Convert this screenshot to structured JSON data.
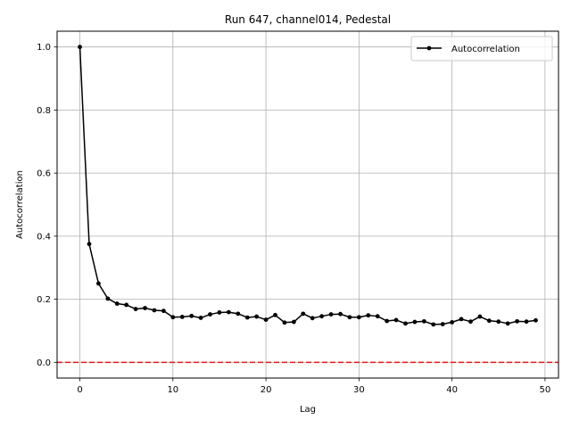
{
  "chart_data": {
    "type": "line",
    "title": "Run 647, channel014, Pedestal",
    "xlabel": "Lag",
    "ylabel": "Autocorrelation",
    "xlim": [
      -2.45,
      51.45
    ],
    "ylim": [
      -0.05,
      1.05
    ],
    "xticks": [
      0,
      10,
      20,
      30,
      40,
      50
    ],
    "yticks": [
      0.0,
      0.2,
      0.4,
      0.6,
      0.8,
      1.0
    ],
    "xtick_labels": [
      "0",
      "10",
      "20",
      "30",
      "40",
      "50"
    ],
    "ytick_labels": [
      "0.0",
      "0.2",
      "0.4",
      "0.6",
      "0.8",
      "1.0"
    ],
    "grid": true,
    "legend_position": "upper right",
    "series": [
      {
        "name": "Autocorrelation",
        "color": "#000000",
        "marker": "circle",
        "x": [
          0,
          1,
          2,
          3,
          4,
          5,
          6,
          7,
          8,
          9,
          10,
          11,
          12,
          13,
          14,
          15,
          16,
          17,
          18,
          19,
          20,
          21,
          22,
          23,
          24,
          25,
          26,
          27,
          28,
          29,
          30,
          31,
          32,
          33,
          34,
          35,
          36,
          37,
          38,
          39,
          40,
          41,
          42,
          43,
          44,
          45,
          46,
          47,
          48,
          49
        ],
        "values": [
          1.0,
          0.375,
          0.25,
          0.202,
          0.186,
          0.182,
          0.169,
          0.172,
          0.165,
          0.163,
          0.143,
          0.144,
          0.147,
          0.141,
          0.152,
          0.158,
          0.159,
          0.154,
          0.142,
          0.145,
          0.135,
          0.15,
          0.126,
          0.128,
          0.154,
          0.14,
          0.146,
          0.152,
          0.153,
          0.143,
          0.143,
          0.149,
          0.146,
          0.131,
          0.134,
          0.123,
          0.128,
          0.13,
          0.12,
          0.121,
          0.127,
          0.137,
          0.129,
          0.145,
          0.132,
          0.129,
          0.123,
          0.13,
          0.129,
          0.133
        ]
      }
    ],
    "reference_line": {
      "y": 0.0,
      "color": "#e41a1c",
      "style": "dashed"
    }
  }
}
